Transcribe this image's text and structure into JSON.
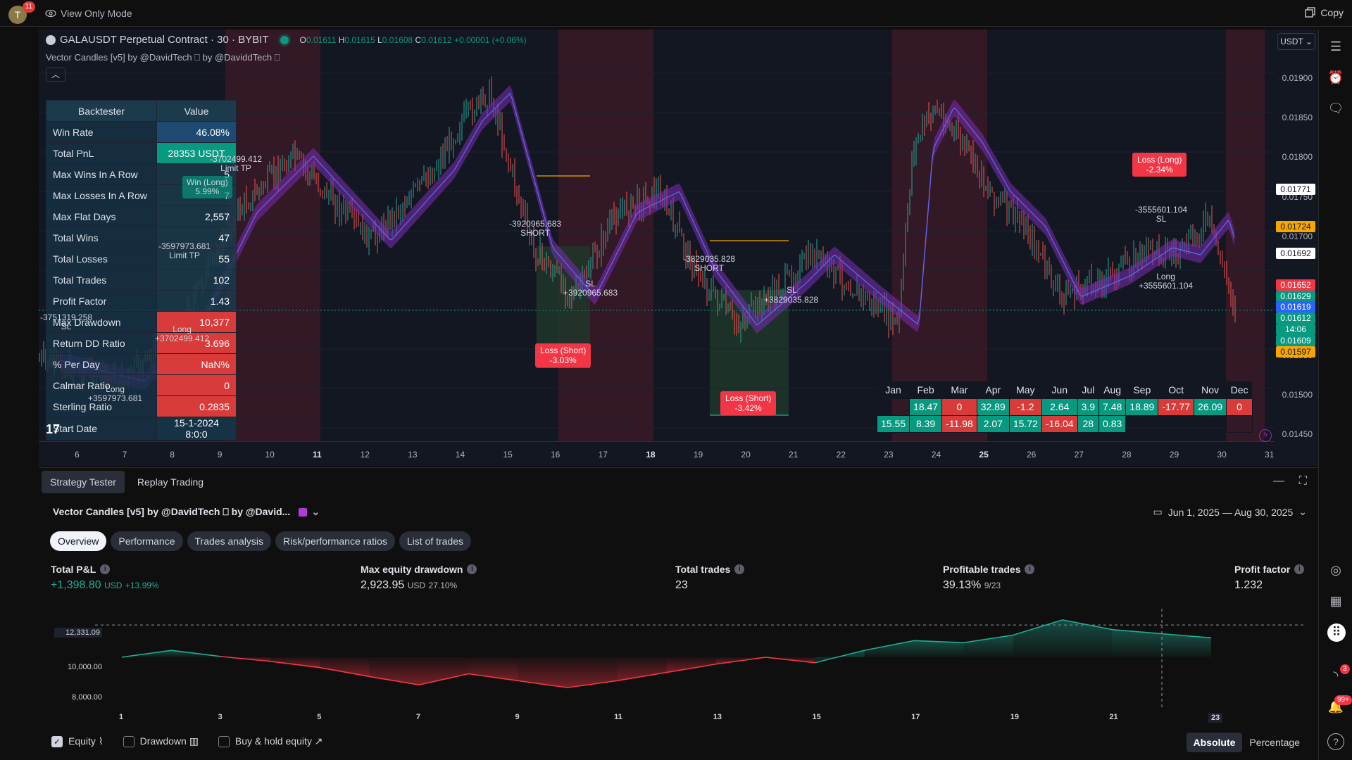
{
  "topbar": {
    "notif_count": "11",
    "avatar_letter": "T",
    "view_mode": "View Only Mode",
    "copy_label": "Copy"
  },
  "chart": {
    "symbol": "GALAUSDT Perpetual Contract · 30 · BYBIT",
    "ohlc": {
      "o_label": "O",
      "o": "0.01611",
      "h_label": "H",
      "h": "0.01615",
      "l_label": "L",
      "l": "0.01608",
      "c_label": "C",
      "c": "0.01612",
      "change": "+0.00001 (+0.06%)"
    },
    "indicator": "Vector Candles [v5] by @DavidTech ⎕ by @DaviddTech ⎕",
    "currency": "USDT",
    "price_labels": [
      "0.01900",
      "0.01850",
      "0.01800",
      "0.01750",
      "0.01700",
      "0.01550",
      "0.01500",
      "0.01450"
    ],
    "price_tags": [
      {
        "text": "0.01771",
        "bg": "#ffffff",
        "fg": "#131722"
      },
      {
        "text": "0.01724",
        "bg": "#f7a600",
        "fg": "#131722"
      },
      {
        "text": "0.01692",
        "bg": "#ffffff",
        "fg": "#131722"
      },
      {
        "text": "0.01652",
        "bg": "#f23645",
        "fg": "#ffffff"
      },
      {
        "text": "0.01629",
        "bg": "#089981",
        "fg": "#ffffff"
      },
      {
        "text": "0.01619",
        "bg": "#2962ff",
        "fg": "#ffffff"
      },
      {
        "text": "0.01612",
        "bg": "#089981",
        "fg": "#ffffff"
      },
      {
        "text": "14:06",
        "bg": "#089981",
        "fg": "#ffffff"
      },
      {
        "text": "0.01609",
        "bg": "#089981",
        "fg": "#ffffff"
      },
      {
        "text": "0.01597",
        "bg": "#f7a600",
        "fg": "#131722"
      }
    ],
    "time_labels": [
      "6",
      "7",
      "8",
      "9",
      "10",
      "11",
      "12",
      "13",
      "14",
      "15",
      "16",
      "17",
      "18",
      "19",
      "20",
      "21",
      "22",
      "23",
      "24",
      "25",
      "26",
      "27",
      "28",
      "29",
      "30",
      "31"
    ],
    "bold_times": [
      "11",
      "18",
      "25"
    ],
    "notes": {
      "limit_tp_top": "-3702499.412\nLimit TP",
      "win_long": "Win (Long)\n5.99%",
      "limit_tp_2": "-3597973.681\nLimit TP",
      "short_1": "-3920965.683\nSHORT",
      "sl_1": "SL\n+3920965.683",
      "loss_short_1": "Loss (Short)\n-3.03%",
      "short_2": "-3829035.828\nSHORT",
      "sl_2": "+3829035.828",
      "sl_2b": "SL",
      "loss_short_2": "Loss (Short)\n-3.42%",
      "loss_long": "Loss (Long)\n-2.34%",
      "sl_3": "-3555601.104\nSL",
      "long_3": "Long\n+3555601.104",
      "sl_left": "-3751319.258\nSL",
      "long_left": "Long\n+3702499.412",
      "long_left2": "Long\n+3597973.681"
    }
  },
  "backtester": {
    "header_key": "Backtester",
    "header_value": "Value",
    "rows": [
      {
        "k": "Win Rate",
        "v": "46.08%",
        "style": "blue"
      },
      {
        "k": "Total PnL",
        "v": "28353 USDT",
        "style": "green"
      },
      {
        "k": "Max Wins In A Row",
        "v": "5",
        "style": "plain"
      },
      {
        "k": "Max Losses In A Row",
        "v": "7",
        "style": "plain"
      },
      {
        "k": "Max Flat Days",
        "v": "2,557",
        "style": "plain"
      },
      {
        "k": "Total Wins",
        "v": "47",
        "style": "plain"
      },
      {
        "k": "Total Losses",
        "v": "55",
        "style": "plain"
      },
      {
        "k": "Total Trades",
        "v": "102",
        "style": "plain"
      },
      {
        "k": "Profit Factor",
        "v": "1.43",
        "style": "plain"
      },
      {
        "k": "Max Drawdown",
        "v": "10,377",
        "style": "red"
      },
      {
        "k": "Return DD Ratio",
        "v": "3.696",
        "style": "red"
      },
      {
        "k": "% Per Day",
        "v": "NaN%",
        "style": "red"
      },
      {
        "k": "Calmar Ratio",
        "v": "0",
        "style": "red"
      },
      {
        "k": "Sterling Ratio",
        "v": "0.2835",
        "style": "red"
      },
      {
        "k": "Start Date",
        "v": "15-1-2024 8:0:0",
        "style": "dark"
      }
    ]
  },
  "months": {
    "headers": [
      "Jan",
      "Feb",
      "Mar",
      "Apr",
      "May",
      "Jun",
      "Jul",
      "Aug",
      "Sep",
      "Oct",
      "Nov",
      "Dec"
    ],
    "row1": [
      {
        "v": "",
        "c": "me"
      },
      {
        "v": "18.47",
        "c": "mg"
      },
      {
        "v": "0",
        "c": "mr"
      },
      {
        "v": "32.89",
        "c": "mg"
      },
      {
        "v": "-1.2",
        "c": "mr"
      },
      {
        "v": "2.64",
        "c": "mg"
      },
      {
        "v": "3.9",
        "c": "mg"
      },
      {
        "v": "7.48",
        "c": "mg"
      },
      {
        "v": "18.89",
        "c": "mg"
      },
      {
        "v": "-17.77",
        "c": "mr"
      },
      {
        "v": "26.09",
        "c": "mg"
      },
      {
        "v": "0",
        "c": "mr"
      }
    ],
    "row2": [
      {
        "v": "15.55",
        "c": "mg"
      },
      {
        "v": "8.39",
        "c": "mg"
      },
      {
        "v": "-11.98",
        "c": "mr"
      },
      {
        "v": "2.07",
        "c": "mg"
      },
      {
        "v": "15.72",
        "c": "mg"
      },
      {
        "v": "-16.04",
        "c": "mr"
      },
      {
        "v": "28",
        "c": "mg"
      },
      {
        "v": "0.83",
        "c": "mg"
      },
      {
        "v": "",
        "c": "me"
      },
      {
        "v": "",
        "c": "me"
      },
      {
        "v": "",
        "c": "me"
      },
      {
        "v": "",
        "c": "me"
      }
    ]
  },
  "bottom": {
    "tabs": [
      "Strategy Tester",
      "Replay Trading"
    ],
    "strategy_title": "Vector Candles [v5] by @DavidTech ⎕ by @David...",
    "date_range": "Jun 1, 2025 — Aug 30, 2025",
    "sub_tabs": [
      "Overview",
      "Performance",
      "Trades analysis",
      "Risk/performance ratios",
      "List of trades"
    ],
    "metrics": {
      "pnl_label": "Total P&L",
      "pnl_value": "+1,398.80",
      "pnl_unit": "USD",
      "pnl_pct": "+13.99%",
      "dd_label": "Max equity drawdown",
      "dd_value": "2,923.95",
      "dd_unit": "USD",
      "dd_pct": "27.10%",
      "trades_label": "Total trades",
      "trades_value": "23",
      "profitable_label": "Profitable trades",
      "profitable_value": "39.13%",
      "profitable_frac": "9/23",
      "pf_label": "Profit factor",
      "pf_value": "1.232"
    },
    "equity_chart": {
      "y_labels": [
        "12,331.09",
        "10,000.00",
        "8,000.00"
      ],
      "x_labels": [
        "1",
        "3",
        "5",
        "7",
        "9",
        "11",
        "13",
        "15",
        "17",
        "19",
        "21",
        "23"
      ],
      "baseline": 10000,
      "ref_line": 12331.09,
      "values": [
        10000,
        10500,
        10050,
        9700,
        9250,
        8600,
        8000,
        8800,
        8300,
        7800,
        8300,
        8900,
        9500,
        10000,
        9600,
        10500,
        11200,
        11050,
        11600,
        12700,
        12000,
        11700,
        11398.8
      ],
      "pos_color": "#22ab94",
      "neg_color": "#f23645"
    },
    "legend": {
      "equity": "Equity",
      "drawdown": "Drawdown",
      "buyhold": "Buy & hold equity"
    },
    "mode": {
      "absolute": "Absolute",
      "percentage": "Percentage"
    }
  },
  "right_toolbar": {
    "badge_feed": "3",
    "badge_alerts": "99+"
  }
}
